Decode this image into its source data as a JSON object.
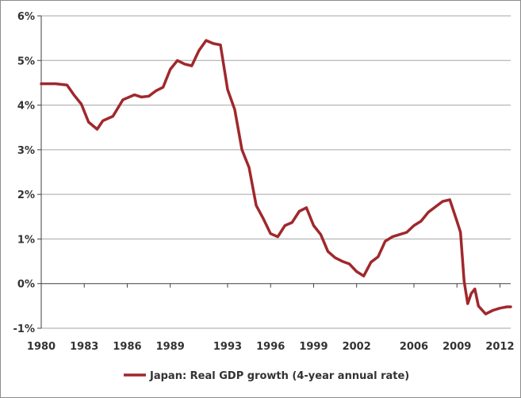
{
  "chart_data": {
    "type": "line",
    "title": "",
    "xlabel": "",
    "ylabel": "",
    "ylim": [
      -1,
      6
    ],
    "xlim": [
      1980,
      2012.75
    ],
    "grid": "horizontal",
    "legend_position": "bottom",
    "colors": {
      "series": "#a0282c",
      "grid": "#a6a6a6",
      "axis": "#404040"
    },
    "y_ticks": [
      {
        "value": 6,
        "label": "6%"
      },
      {
        "value": 5,
        "label": "5%"
      },
      {
        "value": 4,
        "label": "4%"
      },
      {
        "value": 3,
        "label": "3%"
      },
      {
        "value": 2,
        "label": "2%"
      },
      {
        "value": 1,
        "label": "1%"
      },
      {
        "value": 0,
        "label": "0%"
      },
      {
        "value": -1,
        "label": "-1%"
      }
    ],
    "x_ticks": [
      {
        "value": 1980,
        "label": "1980"
      },
      {
        "value": 1983,
        "label": "1983"
      },
      {
        "value": 1986,
        "label": "1986"
      },
      {
        "value": 1989,
        "label": "1989"
      },
      {
        "value": 1993,
        "label": "1993"
      },
      {
        "value": 1996,
        "label": "1996"
      },
      {
        "value": 1999,
        "label": "1999"
      },
      {
        "value": 2002,
        "label": "2002"
      },
      {
        "value": 2006,
        "label": "2006"
      },
      {
        "value": 2009,
        "label": "2009"
      },
      {
        "value": 2012,
        "label": "2012"
      }
    ],
    "series": [
      {
        "name": "Japan: Real GDP growth (4-year annual rate)",
        "x": [
          1980,
          1981,
          1981.8,
          1982.3,
          1982.8,
          1983.3,
          1983.9,
          1984.3,
          1985,
          1985.7,
          1986.5,
          1987,
          1987.5,
          1988,
          1988.5,
          1989,
          1989.5,
          1990,
          1990.5,
          1991,
          1991.5,
          1992,
          1992.5,
          1993,
          1993.5,
          1994,
          1994.5,
          1995,
          1995.5,
          1996,
          1996.5,
          1997,
          1997.5,
          1998,
          1998.5,
          1999,
          1999.5,
          2000,
          2000.5,
          2001,
          2001.5,
          2002,
          2002.5,
          2003,
          2003.5,
          2004,
          2004.5,
          2005,
          2005.5,
          2006,
          2006.5,
          2007,
          2007.5,
          2008,
          2008.5,
          2009,
          2009.25,
          2009.5,
          2009.75,
          2010,
          2010.25,
          2010.5,
          2011,
          2011.5,
          2012,
          2012.5,
          2012.75
        ],
        "values": [
          4.48,
          4.48,
          4.45,
          4.22,
          4.02,
          3.62,
          3.46,
          3.65,
          3.75,
          4.12,
          4.23,
          4.18,
          4.2,
          4.32,
          4.4,
          4.8,
          5.0,
          4.92,
          4.88,
          5.22,
          5.45,
          5.38,
          5.35,
          4.35,
          3.9,
          3.0,
          2.6,
          1.75,
          1.45,
          1.12,
          1.05,
          1.3,
          1.37,
          1.62,
          1.7,
          1.3,
          1.1,
          0.72,
          0.58,
          0.5,
          0.44,
          0.27,
          0.17,
          0.48,
          0.6,
          0.95,
          1.05,
          1.1,
          1.15,
          1.3,
          1.4,
          1.6,
          1.72,
          1.84,
          1.88,
          1.4,
          1.15,
          0.05,
          -0.45,
          -0.22,
          -0.12,
          -0.5,
          -0.68,
          -0.6,
          -0.55,
          -0.52,
          -0.52
        ]
      }
    ]
  }
}
